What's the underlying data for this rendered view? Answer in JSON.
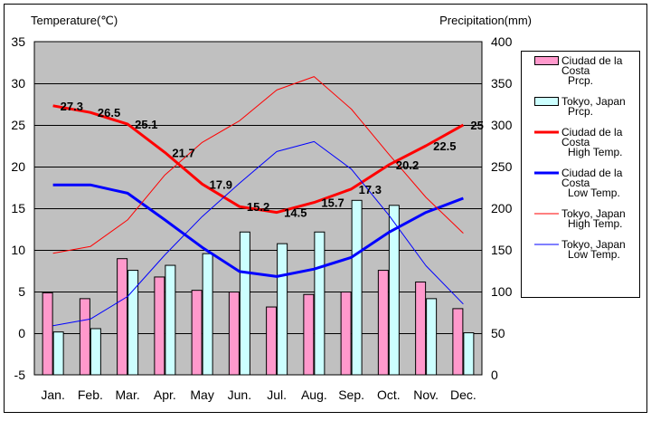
{
  "chart_data": {
    "type": "bar+line",
    "categories": [
      "Jan.",
      "Feb.",
      "Mar.",
      "Apr.",
      "May",
      "Jun.",
      "Jul.",
      "Aug.",
      "Sep.",
      "Oct.",
      "Nov.",
      "Dec."
    ],
    "y_left": {
      "label": "Temperature(℃)",
      "min": -5,
      "max": 35,
      "ticks": [
        -5,
        0,
        5,
        10,
        15,
        20,
        25,
        30,
        35
      ]
    },
    "y_right": {
      "label": "Precipitation(mm)",
      "min": 0,
      "max": 400,
      "ticks": [
        0,
        50,
        100,
        150,
        200,
        250,
        300,
        350,
        400
      ]
    },
    "grid": true,
    "legend_position": "right",
    "bar_series": [
      {
        "name_lines": [
          "Ciudad de la",
          "Costa",
          "Prcp."
        ],
        "color": "#ff99cc",
        "axis": "right",
        "values": [
          99,
          92,
          140,
          118,
          102,
          100,
          82,
          97,
          100,
          126,
          112,
          80
        ]
      },
      {
        "name_lines": [
          "Tokyo, Japan",
          "Prcp."
        ],
        "color": "#ccffff",
        "axis": "right",
        "values": [
          52,
          56,
          126,
          132,
          146,
          172,
          158,
          172,
          210,
          204,
          92,
          51
        ]
      }
    ],
    "line_series": [
      {
        "name_lines": [
          "Ciudad de la",
          "Costa",
          "High Temp."
        ],
        "color": "#ff0000",
        "width": 3,
        "axis": "left",
        "values": [
          27.3,
          26.5,
          25.1,
          21.7,
          17.9,
          15.2,
          14.5,
          15.7,
          17.3,
          20.2,
          22.5,
          25
        ],
        "labels": [
          "27.3",
          "26.5",
          "25.1",
          "21.7",
          "17.9",
          "15.2",
          "14.5",
          "15.7",
          "17.3",
          "20.2",
          "22.5",
          "25"
        ]
      },
      {
        "name_lines": [
          "Ciudad de la",
          "Costa",
          "Low Temp."
        ],
        "color": "#0000ff",
        "width": 3,
        "axis": "left",
        "values": [
          17.8,
          17.8,
          16.8,
          13.6,
          10.3,
          7.4,
          6.8,
          7.7,
          9.1,
          12.1,
          14.5,
          16.2
        ]
      },
      {
        "name_lines": [
          "Tokyo, Japan",
          "High Temp."
        ],
        "color": "#ff0000",
        "width": 1,
        "axis": "left",
        "values": [
          9.6,
          10.4,
          13.6,
          19,
          22.9,
          25.5,
          29.2,
          30.8,
          26.9,
          21.5,
          16.3,
          12
        ]
      },
      {
        "name_lines": [
          "Tokyo, Japan",
          "Low Temp."
        ],
        "color": "#0000ff",
        "width": 1,
        "axis": "left",
        "values": [
          0.9,
          1.7,
          4.4,
          9.4,
          14,
          18,
          21.8,
          23,
          19.7,
          14.2,
          8.1,
          3.5
        ]
      }
    ]
  }
}
